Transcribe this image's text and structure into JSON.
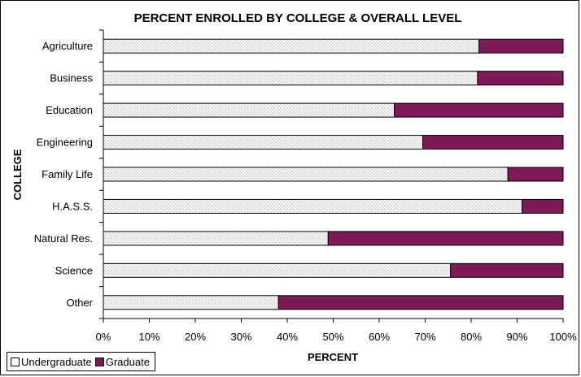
{
  "chart_data": {
    "type": "bar",
    "orientation": "horizontal",
    "stacked": true,
    "title": "PERCENT ENROLLED BY COLLEGE & OVERALL LEVEL",
    "xlabel": "PERCENT",
    "ylabel": "COLLEGE",
    "categories": [
      "Agriculture",
      "Business",
      "Education",
      "Engineering",
      "Family Life",
      "H.A.S.S.",
      "Natural Res.",
      "Science",
      "Other"
    ],
    "series": [
      {
        "name": "Undergraduate",
        "values": [
          81.7,
          81.4,
          63.3,
          69.5,
          88.0,
          91.1,
          48.9,
          75.5,
          38.1
        ],
        "color": "#f4f4f4",
        "pattern": "dotted"
      },
      {
        "name": "Graduate",
        "values": [
          18.3,
          18.6,
          36.7,
          30.5,
          12.0,
          8.9,
          51.1,
          24.5,
          61.9
        ],
        "color": "#7e1a55"
      }
    ],
    "xlim": [
      0,
      100
    ],
    "xticks": [
      "0%",
      "10%",
      "20%",
      "30%",
      "40%",
      "50%",
      "60%",
      "70%",
      "80%",
      "90%",
      "100%"
    ],
    "grid": false,
    "legend_position": "bottom-left"
  }
}
